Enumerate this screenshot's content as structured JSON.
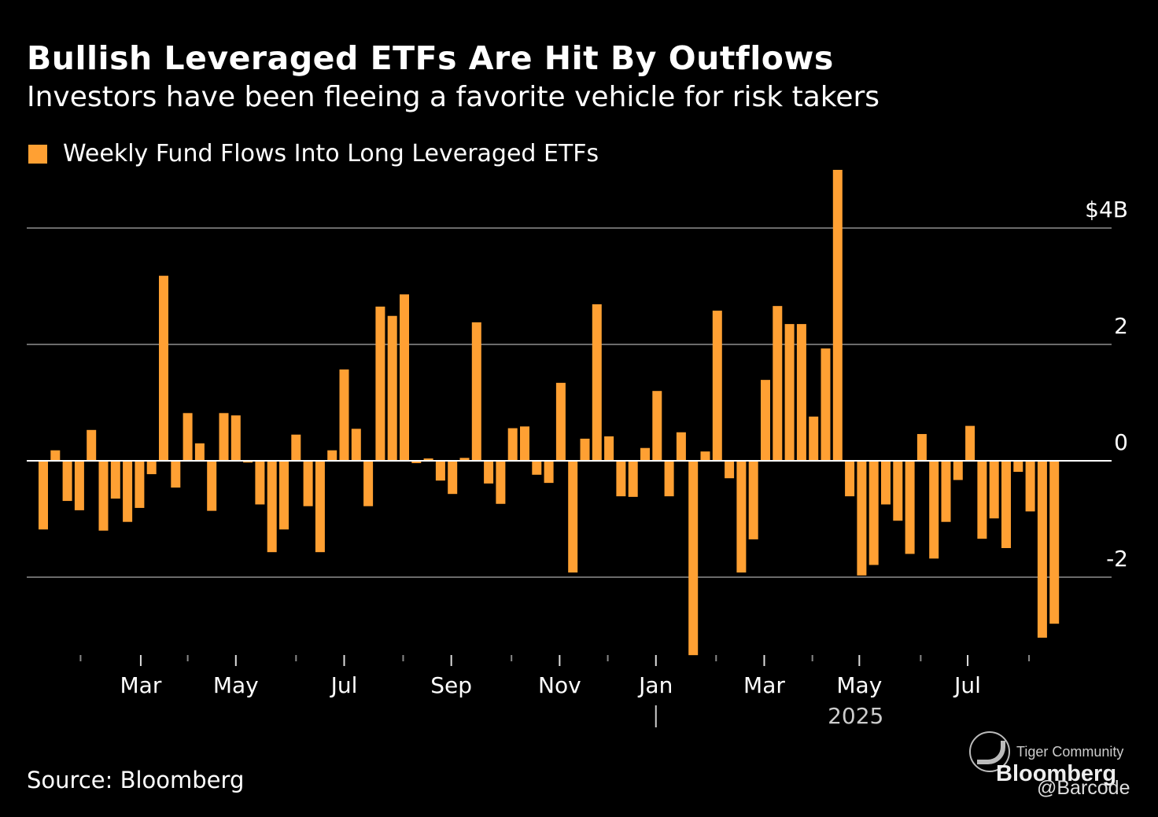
{
  "header": {
    "title": "Bullish Leveraged ETFs Are Hit By Outflows",
    "subtitle": "Investors have been fleeing a favorite vehicle for risk takers"
  },
  "footer": {
    "source": "Source: Bloomberg"
  },
  "watermark": {
    "logo_icon": "tiger-logo-icon",
    "community": "Tiger Community",
    "brand": "Bloomberg",
    "handle": "@Barcode"
  },
  "colors": {
    "background": "#000000",
    "bar": "#FFA033",
    "gridline": "#6b6b6b",
    "zero_line": "#ffffff",
    "text": "#ffffff"
  },
  "chart_data": {
    "type": "bar",
    "title": "Bullish Leveraged ETFs Are Hit By Outflows",
    "subtitle": "Investors have been fleeing a favorite vehicle for risk takers",
    "xlabel": "",
    "ylabel": "",
    "legend": {
      "placement": "top-left",
      "entries": [
        "Weekly Fund Flows Into Long Leveraged ETFs"
      ]
    },
    "series": [
      {
        "name": "Weekly Fund Flows Into Long Leveraged ETFs",
        "unit": "$B",
        "values": [
          -1.18,
          0.18,
          -0.69,
          -0.85,
          0.53,
          -1.2,
          -0.65,
          -1.05,
          -0.81,
          -0.23,
          3.18,
          -0.46,
          0.82,
          0.3,
          -0.86,
          0.82,
          0.78,
          -0.03,
          -0.75,
          -1.57,
          -1.18,
          0.45,
          -0.78,
          -1.57,
          0.18,
          1.57,
          0.55,
          -0.78,
          2.65,
          2.49,
          2.86,
          -0.04,
          0.04,
          -0.34,
          -0.57,
          0.05,
          2.38,
          -0.39,
          -0.74,
          0.56,
          0.59,
          -0.24,
          -0.38,
          1.34,
          -1.92,
          0.38,
          2.69,
          0.42,
          -0.61,
          -0.62,
          0.22,
          1.2,
          -0.61,
          0.49,
          -3.34,
          0.16,
          2.58,
          -0.3,
          -1.92,
          -1.35,
          1.39,
          2.66,
          2.35,
          2.35,
          0.76,
          1.93,
          5.0,
          -0.61,
          -1.97,
          -1.79,
          -0.75,
          -1.03,
          -1.6,
          0.46,
          -1.68,
          -1.05,
          -0.33,
          0.6,
          -1.34,
          -0.99,
          -1.5,
          -0.19,
          -0.87,
          -3.04,
          -2.8
        ]
      }
    ],
    "x_axis": {
      "unit": "week",
      "major_ticks": [
        {
          "label": "Mar",
          "bar_index": 8.1
        },
        {
          "label": "May",
          "bar_index": 16.0
        },
        {
          "label": "Jul",
          "bar_index": 25.0
        },
        {
          "label": "Sep",
          "bar_index": 33.9
        },
        {
          "label": "Nov",
          "bar_index": 42.9
        },
        {
          "label": "Jan",
          "bar_index": 50.9
        },
        {
          "label": "Mar",
          "bar_index": 59.9
        },
        {
          "label": "May",
          "bar_index": 67.8
        },
        {
          "label": "Jul",
          "bar_index": 76.8
        }
      ],
      "minor_ticks_bar_index": [
        3.1,
        12.0,
        21.0,
        29.9,
        38.9,
        46.9,
        55.9,
        63.9,
        72.9,
        81.9
      ],
      "year_label": {
        "text": "2025",
        "bar_index": 67.5
      },
      "year_divider_bar_index": 50.9
    },
    "y_axis": {
      "ylim": [
        -3.4,
        5.1
      ],
      "ticks": [
        {
          "value": 4,
          "label": "$4B"
        },
        {
          "value": 2,
          "label": "2"
        },
        {
          "value": 0,
          "label": "0"
        },
        {
          "value": -2,
          "label": "-2"
        }
      ],
      "position": "right",
      "grid": true
    }
  }
}
